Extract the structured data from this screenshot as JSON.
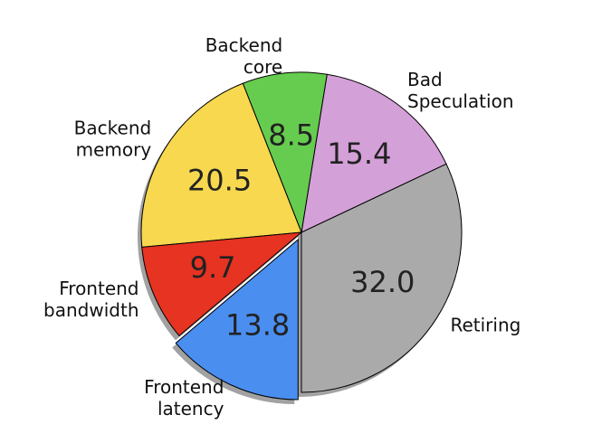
{
  "chart_data": {
    "type": "pie",
    "categories": [
      "Retiring",
      "Bad\nSpeculation",
      "Backend\ncore",
      "Backend\nmemory",
      "Frontend\nbandwidth",
      "Frontend\nlatency"
    ],
    "values": [
      32.0,
      15.4,
      8.5,
      20.5,
      9.7,
      13.8
    ],
    "value_labels": [
      "32.0",
      "15.4",
      "8.5",
      "20.5",
      "9.7",
      "13.8"
    ],
    "colors": [
      "#aaaaaa",
      "#d4a0d8",
      "#66cc4f",
      "#f7d84f",
      "#e63322",
      "#4a8ef0"
    ],
    "explode": [
      0,
      0,
      0,
      0,
      0,
      0.05
    ],
    "startangle": 270,
    "shadow": true
  }
}
